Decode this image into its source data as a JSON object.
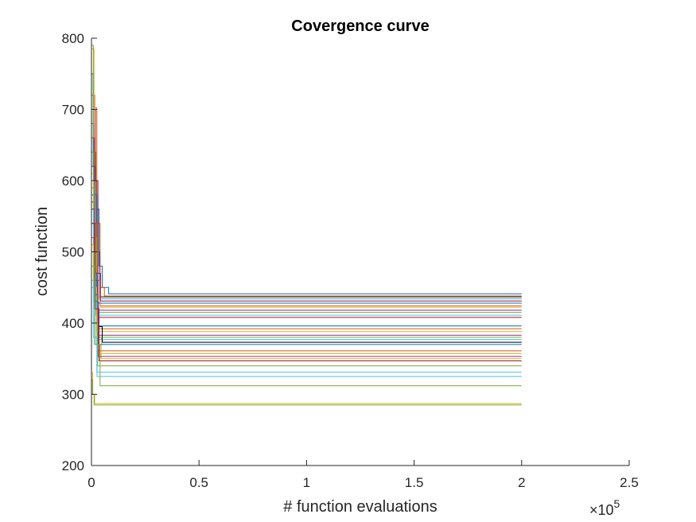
{
  "chart_data": {
    "type": "line",
    "title": "Covergence curve",
    "xlabel": "# function evaluations",
    "ylabel": "cost function",
    "x_exponent_label": "×10",
    "x_exponent_power": "5",
    "xlim": [
      0,
      250000
    ],
    "ylim": [
      200,
      800
    ],
    "x_ticks": [
      0,
      50000,
      100000,
      150000,
      200000,
      250000
    ],
    "x_tick_labels": [
      "0",
      "0.5",
      "1",
      "1.5",
      "2",
      "2.5"
    ],
    "y_ticks": [
      200,
      300,
      400,
      500,
      600,
      700,
      800
    ],
    "y_tick_labels": [
      "200",
      "300",
      "400",
      "500",
      "600",
      "700",
      "800"
    ],
    "grid": false,
    "legend": "none",
    "axis_box": "left-bottom",
    "series": [
      {
        "color": "#0072BD",
        "points": [
          [
            0,
            750
          ],
          [
            800,
            620
          ],
          [
            2000,
            560
          ],
          [
            3500,
            480
          ],
          [
            5000,
            450
          ],
          [
            8000,
            441
          ],
          [
            200000,
            441
          ]
        ]
      },
      {
        "color": "#D95319",
        "points": [
          [
            0,
            720
          ],
          [
            1500,
            702
          ],
          [
            2500,
            540
          ],
          [
            4000,
            450
          ],
          [
            6000,
            438
          ],
          [
            200000,
            438
          ]
        ]
      },
      {
        "color": "#EDB120",
        "points": [
          [
            0,
            785
          ],
          [
            1200,
            560
          ],
          [
            2500,
            420
          ],
          [
            3500,
            380
          ],
          [
            4500,
            350
          ],
          [
            200000,
            350
          ]
        ]
      },
      {
        "color": "#7E2F8E",
        "points": [
          [
            0,
            680
          ],
          [
            1000,
            600
          ],
          [
            2200,
            500
          ],
          [
            3800,
            437
          ],
          [
            200000,
            437
          ]
        ]
      },
      {
        "color": "#77AC30",
        "points": [
          [
            0,
            790
          ],
          [
            900,
            640
          ],
          [
            2000,
            460
          ],
          [
            3000,
            436
          ],
          [
            200000,
            436
          ]
        ]
      },
      {
        "color": "#4DBEEE",
        "points": [
          [
            0,
            640
          ],
          [
            1500,
            520
          ],
          [
            2500,
            434
          ],
          [
            200000,
            434
          ]
        ]
      },
      {
        "color": "#A2142F",
        "points": [
          [
            0,
            700
          ],
          [
            1800,
            600
          ],
          [
            3000,
            470
          ],
          [
            4200,
            431
          ],
          [
            200000,
            431
          ]
        ]
      },
      {
        "color": "#0072BD",
        "points": [
          [
            0,
            660
          ],
          [
            1000,
            580
          ],
          [
            2500,
            428
          ],
          [
            200000,
            428
          ]
        ]
      },
      {
        "color": "#D95319",
        "points": [
          [
            0,
            660
          ],
          [
            1400,
            540
          ],
          [
            2600,
            460
          ],
          [
            4000,
            424
          ],
          [
            200000,
            424
          ]
        ]
      },
      {
        "color": "#EDB120",
        "points": [
          [
            0,
            610
          ],
          [
            1200,
            500
          ],
          [
            2400,
            422
          ],
          [
            200000,
            422
          ]
        ]
      },
      {
        "color": "#7E2F8E",
        "points": [
          [
            0,
            600
          ],
          [
            1000,
            480
          ],
          [
            2000,
            418
          ],
          [
            200000,
            418
          ]
        ]
      },
      {
        "color": "#77AC30",
        "points": [
          [
            0,
            640
          ],
          [
            1100,
            520
          ],
          [
            2300,
            415
          ],
          [
            200000,
            415
          ]
        ]
      },
      {
        "color": "#4DBEEE",
        "points": [
          [
            0,
            590
          ],
          [
            900,
            470
          ],
          [
            2000,
            411
          ],
          [
            200000,
            411
          ]
        ]
      },
      {
        "color": "#A2142F",
        "points": [
          [
            0,
            570
          ],
          [
            1300,
            460
          ],
          [
            2700,
            408
          ],
          [
            200000,
            408
          ]
        ]
      },
      {
        "color": "#0072BD",
        "points": [
          [
            0,
            580
          ],
          [
            1100,
            470
          ],
          [
            2500,
            396
          ],
          [
            200000,
            396
          ]
        ]
      },
      {
        "color": "#D95319",
        "points": [
          [
            0,
            560
          ],
          [
            1200,
            440
          ],
          [
            2800,
            392
          ],
          [
            200000,
            392
          ]
        ]
      },
      {
        "color": "#EDB120",
        "points": [
          [
            0,
            600
          ],
          [
            1000,
            450
          ],
          [
            2400,
            388
          ],
          [
            200000,
            388
          ]
        ]
      },
      {
        "color": "#7E2F8E",
        "points": [
          [
            0,
            620
          ],
          [
            1500,
            470
          ],
          [
            3000,
            383
          ],
          [
            200000,
            383
          ]
        ]
      },
      {
        "color": "#77AC30",
        "points": [
          [
            0,
            590
          ],
          [
            1200,
            440
          ],
          [
            2600,
            380
          ],
          [
            200000,
            380
          ]
        ]
      },
      {
        "color": "#4DBEEE",
        "points": [
          [
            0,
            560
          ],
          [
            1000,
            430
          ],
          [
            2500,
            377
          ],
          [
            200000,
            377
          ]
        ]
      },
      {
        "color": "#000000",
        "points": [
          [
            0,
            400
          ],
          [
            1500,
            400
          ],
          [
            3000,
            395
          ],
          [
            5000,
            373
          ],
          [
            200000,
            373
          ]
        ]
      },
      {
        "color": "#0072BD",
        "points": [
          [
            0,
            540
          ],
          [
            1400,
            430
          ],
          [
            3200,
            370
          ],
          [
            200000,
            370
          ]
        ]
      },
      {
        "color": "#D95319",
        "points": [
          [
            0,
            520
          ],
          [
            1200,
            420
          ],
          [
            2800,
            361
          ],
          [
            200000,
            361
          ]
        ]
      },
      {
        "color": "#EDB120",
        "points": [
          [
            0,
            510
          ],
          [
            1000,
            420
          ],
          [
            2600,
            357
          ],
          [
            200000,
            357
          ]
        ]
      },
      {
        "color": "#7E2F8E",
        "points": [
          [
            0,
            560
          ],
          [
            1400,
            440
          ],
          [
            3000,
            353
          ],
          [
            200000,
            353
          ]
        ]
      },
      {
        "color": "#A2142F",
        "points": [
          [
            0,
            540
          ],
          [
            1600,
            420
          ],
          [
            3500,
            347
          ],
          [
            200000,
            347
          ]
        ]
      },
      {
        "color": "#77AC30",
        "points": [
          [
            0,
            500
          ],
          [
            1200,
            400
          ],
          [
            2800,
            340
          ],
          [
            200000,
            340
          ]
        ]
      },
      {
        "color": "#4DBEEE",
        "points": [
          [
            0,
            460
          ],
          [
            1000,
            380
          ],
          [
            2500,
            331
          ],
          [
            200000,
            331
          ]
        ]
      },
      {
        "color": "#4DBEEE",
        "points": [
          [
            0,
            450
          ],
          [
            1200,
            370
          ],
          [
            2600,
            325
          ],
          [
            200000,
            325
          ]
        ]
      },
      {
        "color": "#77AC30",
        "points": [
          [
            0,
            480
          ],
          [
            1800,
            370
          ],
          [
            4000,
            312
          ],
          [
            200000,
            312
          ]
        ]
      },
      {
        "color": "#EDB120",
        "points": [
          [
            0,
            330
          ],
          [
            600,
            300
          ],
          [
            1500,
            287
          ],
          [
            200000,
            287
          ]
        ]
      },
      {
        "color": "#77AC30",
        "points": [
          [
            0,
            320
          ],
          [
            500,
            300
          ],
          [
            1200,
            285
          ],
          [
            200000,
            285
          ]
        ]
      }
    ]
  }
}
